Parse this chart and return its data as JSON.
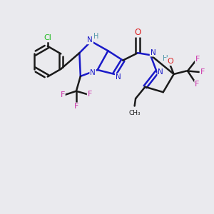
{
  "background_color": "#eaeaee",
  "bond_color": "#1a1ac8",
  "bond_color_black": "#1a1a1a",
  "bond_width": 1.8,
  "atom_colors": {
    "Cl": "#22bb22",
    "F": "#cc33aa",
    "O": "#dd2222",
    "N": "#1a1ac8",
    "NH": "#5599aa",
    "H": "#5599aa",
    "C": "#1a1a1a"
  }
}
